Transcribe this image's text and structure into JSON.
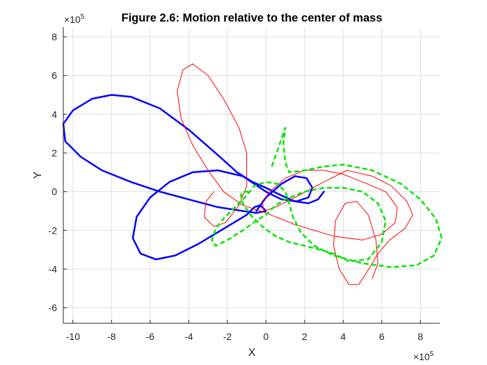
{
  "chart_data": {
    "type": "line",
    "title": "Figure 2.6: Motion relative to the center of mass",
    "xlabel": "X",
    "ylabel": "Y",
    "x_multiplier": "×10",
    "x_exponent": "5",
    "y_multiplier": "×10",
    "y_exponent": "5",
    "xlim": [
      -1.05,
      0.9
    ],
    "ylim": [
      -0.68,
      0.85
    ],
    "x_ticks": [
      -1.0,
      -0.8,
      -0.6,
      -0.4,
      -0.2,
      0,
      0.2,
      0.4,
      0.6,
      0.8
    ],
    "x_tick_labels": [
      "-10",
      "-8",
      "-6",
      "-4",
      "-2",
      "0",
      "2",
      "4",
      "6",
      "8"
    ],
    "y_ticks": [
      -0.6,
      -0.4,
      -0.2,
      0,
      0.2,
      0.4,
      0.6,
      0.8
    ],
    "y_tick_labels": [
      "-6",
      "-4",
      "-2",
      "0",
      "2",
      "4",
      "6",
      "8"
    ],
    "grid": true,
    "legend": "none",
    "series": [
      {
        "color": "#0000ff",
        "line_style": "solid",
        "line_width": "thick",
        "points": [
          [
            0.3,
            0.0
          ],
          [
            0.27,
            -0.04
          ],
          [
            0.22,
            -0.06
          ],
          [
            0.15,
            -0.05
          ],
          [
            0.08,
            -0.02
          ],
          [
            0.0,
            0.02
          ],
          [
            -0.07,
            0.05
          ],
          [
            -0.15,
            0.1
          ],
          [
            -0.25,
            0.19
          ],
          [
            -0.4,
            0.32
          ],
          [
            -0.55,
            0.43
          ],
          [
            -0.7,
            0.49
          ],
          [
            -0.8,
            0.5
          ],
          [
            -0.9,
            0.48
          ],
          [
            -1.0,
            0.42
          ],
          [
            -1.05,
            0.35
          ],
          [
            -1.04,
            0.26
          ],
          [
            -0.96,
            0.18
          ],
          [
            -0.85,
            0.11
          ],
          [
            -0.7,
            0.05
          ],
          [
            -0.55,
            0.0
          ],
          [
            -0.4,
            -0.04
          ],
          [
            -0.25,
            -0.08
          ],
          [
            -0.12,
            -0.1
          ],
          [
            -0.05,
            -0.11
          ],
          [
            0.0,
            -0.1
          ],
          [
            -0.03,
            -0.07
          ],
          [
            -0.06,
            -0.08
          ],
          [
            -0.1,
            -0.12
          ],
          [
            -0.2,
            -0.18
          ],
          [
            -0.35,
            -0.27
          ],
          [
            -0.47,
            -0.33
          ],
          [
            -0.57,
            -0.35
          ],
          [
            -0.65,
            -0.32
          ],
          [
            -0.69,
            -0.24
          ],
          [
            -0.67,
            -0.13
          ],
          [
            -0.6,
            -0.03
          ],
          [
            -0.5,
            0.05
          ],
          [
            -0.38,
            0.1
          ],
          [
            -0.25,
            0.11
          ],
          [
            -0.12,
            0.08
          ],
          [
            0.0,
            0.0
          ],
          [
            0.08,
            -0.04
          ],
          [
            0.16,
            -0.05
          ],
          [
            0.22,
            -0.03
          ],
          [
            0.24,
            0.02
          ],
          [
            0.21,
            0.07
          ],
          [
            0.15,
            0.08
          ],
          [
            0.08,
            0.04
          ],
          [
            0.0,
            -0.03
          ],
          [
            -0.05,
            -0.1
          ]
        ]
      },
      {
        "color": "#ff0000",
        "line_style": "solid",
        "line_width": "thin",
        "points": [
          [
            -0.27,
            0.0
          ],
          [
            -0.31,
            -0.05
          ],
          [
            -0.32,
            -0.13
          ],
          [
            -0.27,
            -0.18
          ],
          [
            -0.21,
            -0.16
          ],
          [
            -0.14,
            -0.07
          ],
          [
            -0.1,
            0.03
          ],
          [
            -0.1,
            0.2
          ],
          [
            -0.14,
            0.33
          ],
          [
            -0.22,
            0.48
          ],
          [
            -0.3,
            0.6
          ],
          [
            -0.38,
            0.66
          ],
          [
            -0.43,
            0.63
          ],
          [
            -0.46,
            0.52
          ],
          [
            -0.44,
            0.38
          ],
          [
            -0.38,
            0.24
          ],
          [
            -0.3,
            0.11
          ],
          [
            -0.22,
            0.0
          ],
          [
            -0.12,
            -0.07
          ],
          [
            0.0,
            -0.11
          ],
          [
            0.15,
            -0.17
          ],
          [
            0.35,
            -0.23
          ],
          [
            0.5,
            -0.25
          ],
          [
            0.6,
            -0.22
          ],
          [
            0.67,
            -0.16
          ],
          [
            0.68,
            -0.08
          ],
          [
            0.62,
            0.0
          ],
          [
            0.5,
            0.05
          ],
          [
            0.4,
            0.09
          ],
          [
            0.3,
            0.11
          ],
          [
            0.2,
            0.11
          ],
          [
            0.1,
            0.07
          ],
          [
            0.03,
            0.01
          ],
          [
            -0.02,
            -0.05
          ],
          [
            -0.01,
            -0.1
          ],
          [
            0.05,
            -0.08
          ],
          [
            0.15,
            -0.03
          ],
          [
            0.3,
            0.05
          ],
          [
            0.42,
            0.11
          ],
          [
            0.55,
            0.08
          ],
          [
            0.65,
            0.03
          ],
          [
            0.73,
            -0.05
          ],
          [
            0.76,
            -0.12
          ],
          [
            0.72,
            -0.19
          ],
          [
            0.64,
            -0.25
          ],
          [
            0.58,
            -0.32
          ],
          [
            0.52,
            -0.42
          ],
          [
            0.48,
            -0.48
          ],
          [
            0.43,
            -0.48
          ],
          [
            0.38,
            -0.4
          ],
          [
            0.35,
            -0.28
          ],
          [
            0.36,
            -0.15
          ],
          [
            0.41,
            -0.06
          ],
          [
            0.47,
            -0.05
          ],
          [
            0.53,
            -0.12
          ],
          [
            0.57,
            -0.25
          ],
          [
            0.58,
            -0.37
          ],
          [
            0.55,
            -0.45
          ]
        ]
      },
      {
        "color": "#00e600",
        "line_style": "dashed",
        "line_width": "thick",
        "points": [
          [
            0.03,
            0.13
          ],
          [
            0.1,
            0.33
          ],
          [
            0.09,
            0.25
          ],
          [
            0.1,
            0.15
          ],
          [
            0.12,
            0.1
          ],
          [
            0.2,
            0.11
          ],
          [
            0.3,
            0.13
          ],
          [
            0.4,
            0.14
          ],
          [
            0.55,
            0.11
          ],
          [
            0.7,
            0.04
          ],
          [
            0.8,
            -0.04
          ],
          [
            0.88,
            -0.14
          ],
          [
            0.91,
            -0.24
          ],
          [
            0.87,
            -0.33
          ],
          [
            0.78,
            -0.38
          ],
          [
            0.65,
            -0.39
          ],
          [
            0.5,
            -0.37
          ],
          [
            0.35,
            -0.33
          ],
          [
            0.25,
            -0.28
          ],
          [
            0.18,
            -0.21
          ],
          [
            0.14,
            -0.13
          ],
          [
            0.12,
            -0.06
          ],
          [
            0.1,
            0.0
          ],
          [
            0.06,
            0.04
          ],
          [
            0.0,
            0.05
          ],
          [
            -0.06,
            0.03
          ],
          [
            -0.1,
            -0.02
          ],
          [
            -0.14,
            -0.06
          ],
          [
            -0.18,
            -0.1
          ],
          [
            -0.22,
            -0.14
          ],
          [
            -0.26,
            -0.19
          ],
          [
            -0.28,
            -0.25
          ],
          [
            -0.26,
            -0.28
          ],
          [
            -0.2,
            -0.25
          ],
          [
            -0.12,
            -0.2
          ],
          [
            -0.05,
            -0.15
          ],
          [
            0.0,
            -0.12
          ],
          [
            0.05,
            -0.07
          ],
          [
            0.1,
            -0.04
          ],
          [
            0.2,
            0.0
          ],
          [
            0.3,
            0.02
          ],
          [
            0.4,
            0.02
          ],
          [
            0.5,
            0.0
          ],
          [
            0.58,
            -0.06
          ],
          [
            0.62,
            -0.15
          ],
          [
            0.6,
            -0.26
          ],
          [
            0.53,
            -0.35
          ],
          [
            0.43,
            -0.36
          ],
          [
            0.35,
            -0.32
          ],
          [
            0.28,
            -0.3
          ],
          [
            0.2,
            -0.28
          ],
          [
            0.12,
            -0.26
          ],
          [
            0.05,
            -0.23
          ],
          [
            -0.02,
            -0.18
          ],
          [
            -0.08,
            -0.12
          ],
          [
            -0.12,
            -0.06
          ],
          [
            -0.13,
            -0.02
          ],
          [
            -0.12,
            0.0
          ],
          [
            -0.09,
            0.0
          ]
        ]
      }
    ]
  }
}
